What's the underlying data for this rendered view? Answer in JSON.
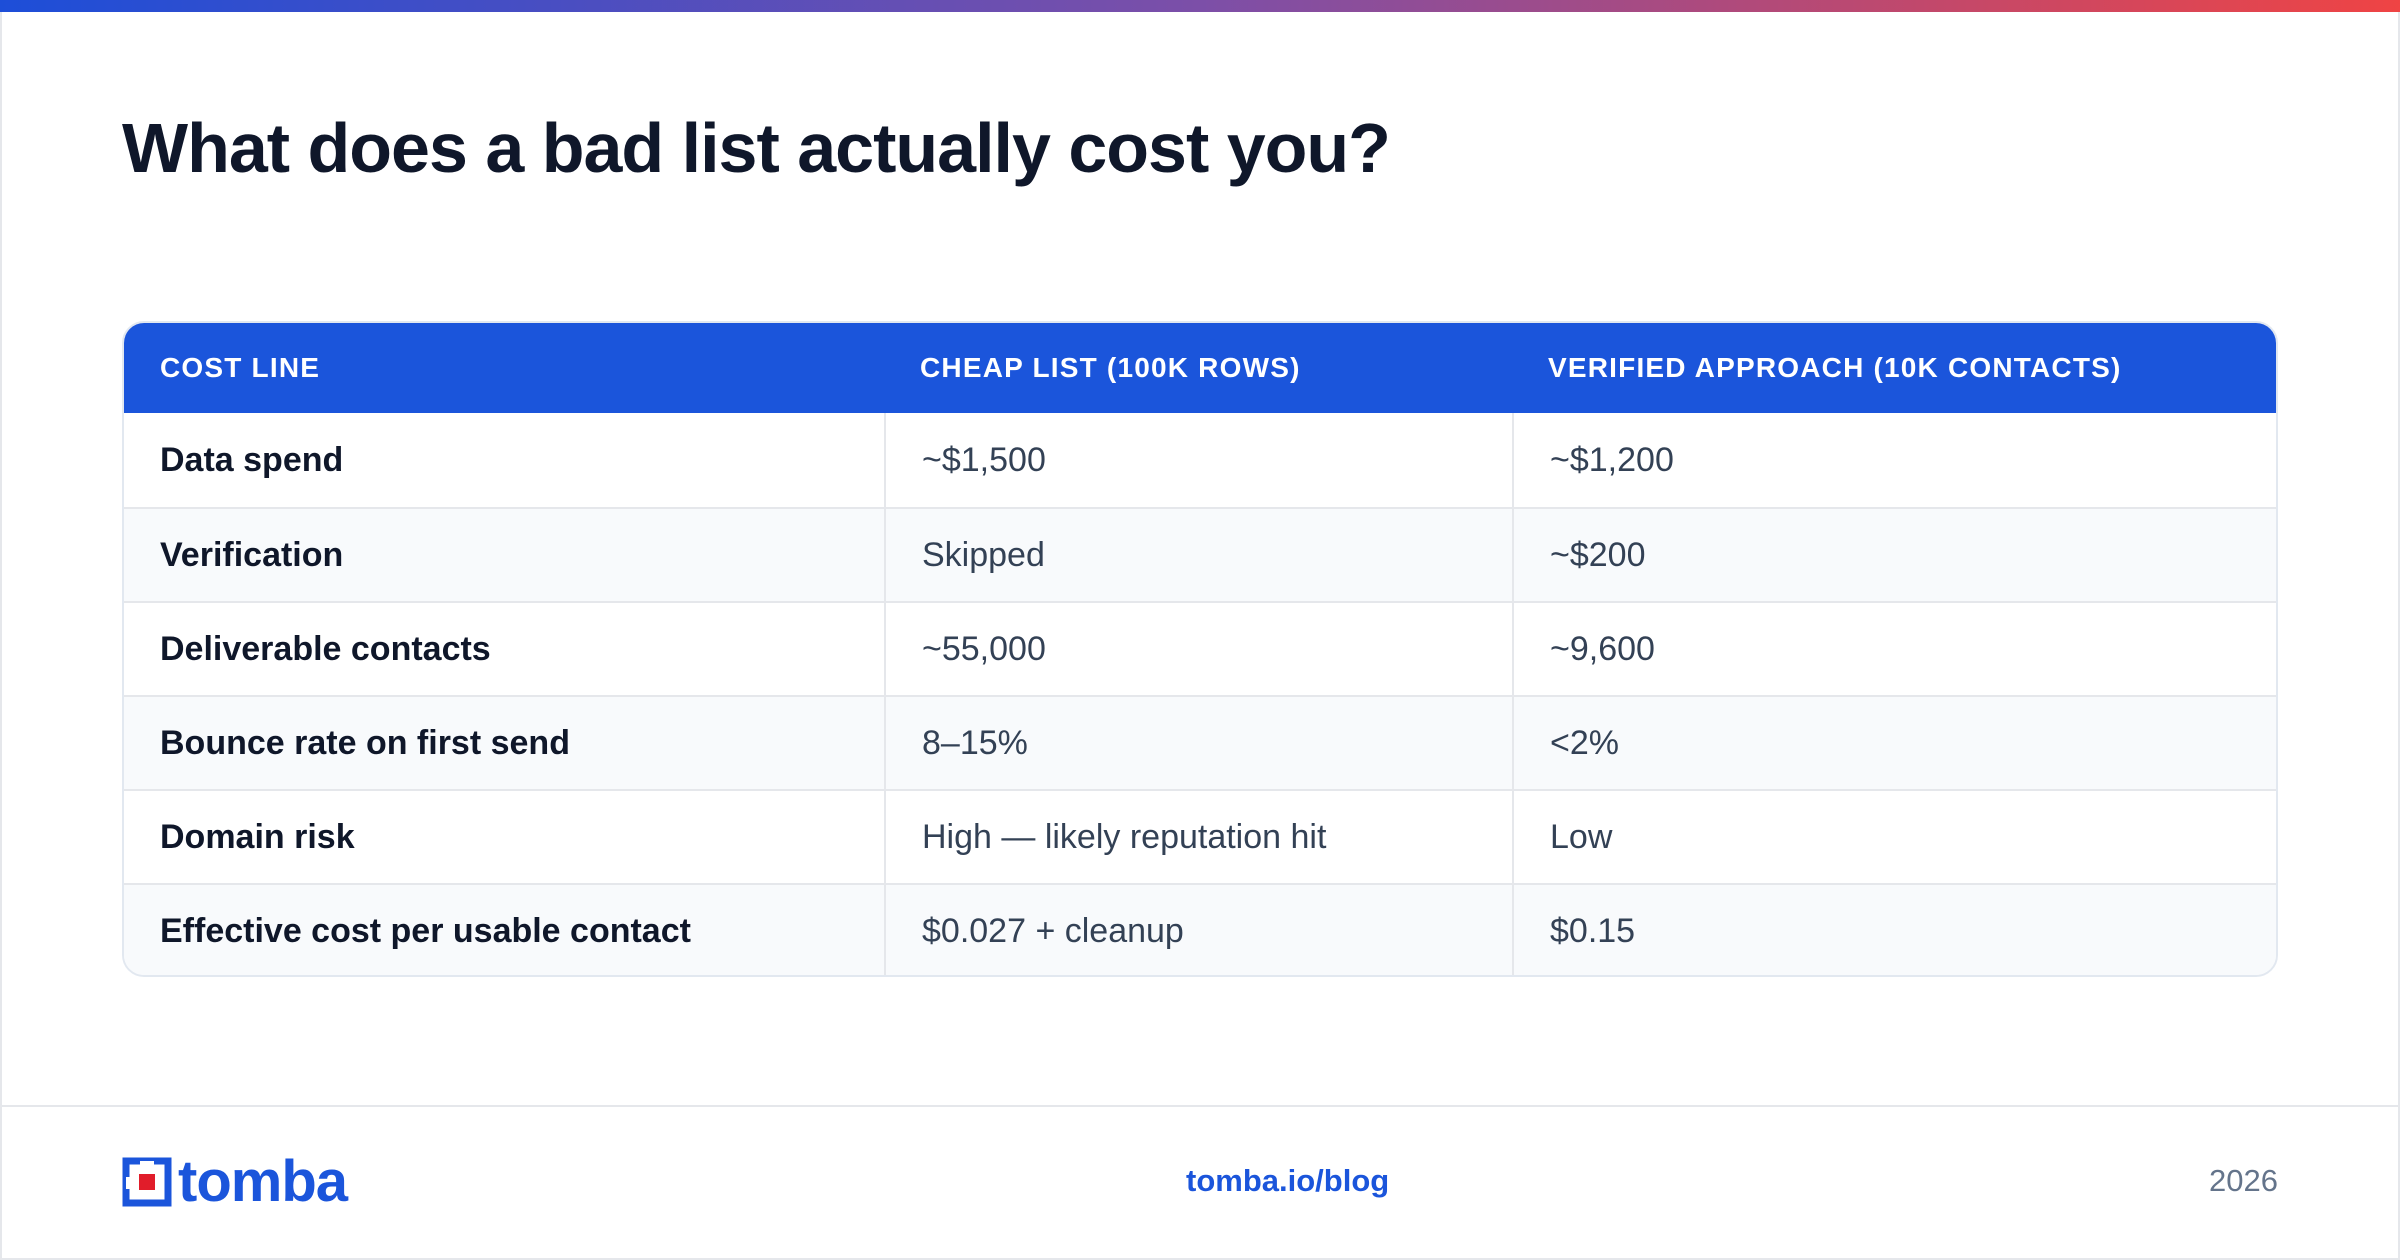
{
  "title": "What does a bad list actually cost you?",
  "table": {
    "headers": [
      "Cost line",
      "Cheap list (100K rows)",
      "Verified approach (10K contacts)"
    ],
    "rows": [
      [
        "Data spend",
        "~$1,500",
        "~$1,200"
      ],
      [
        "Verification",
        "Skipped",
        "~$200"
      ],
      [
        "Deliverable contacts",
        "~55,000",
        "~9,600"
      ],
      [
        "Bounce rate on first send",
        "8–15%",
        "<2%"
      ],
      [
        "Domain risk",
        "High — likely reputation hit",
        "Low"
      ],
      [
        "Effective cost per usable contact",
        "$0.027 + cleanup",
        "$0.15"
      ]
    ]
  },
  "footer": {
    "logo_text": "tomba",
    "link": "tomba.io/blog",
    "year": "2026"
  },
  "colors": {
    "accent": "#1b55db",
    "gradient_start": "#1d4ed8",
    "gradient_end": "#ef4444",
    "logo_square": "#e11d2a"
  }
}
